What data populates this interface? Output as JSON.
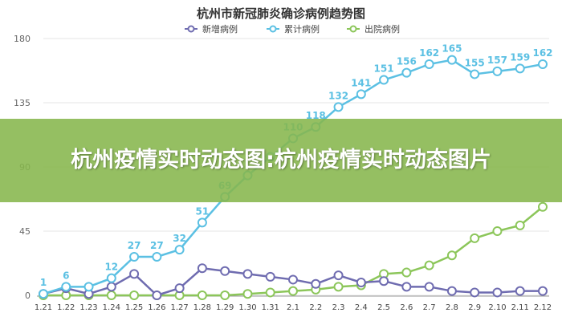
{
  "banner": {
    "text": "杭州疫情实时动态图:杭州疫情实时动态图片"
  },
  "chart_data": {
    "type": "line",
    "title": "杭州市新冠肺炎确诊病例趋势图",
    "xlabel": "",
    "ylabel": "",
    "ylim": [
      0,
      180
    ],
    "yticks": [
      0,
      45,
      90,
      135,
      180
    ],
    "grid": true,
    "legend": "top-center",
    "categories": [
      "1.21",
      "1.22",
      "1.23",
      "1.24",
      "1.25",
      "1.26",
      "1.27",
      "1.28",
      "1.29",
      "1.30",
      "1.31",
      "2.1",
      "2.2",
      "2.3",
      "2.4",
      "2.5",
      "2.6",
      "2.7",
      "2.8",
      "2.9",
      "2.10",
      "2.11",
      "2.12"
    ],
    "series": [
      {
        "name": "新增病例",
        "color": "#6f6cb0",
        "values": [
          1,
          5,
          1,
          6,
          15,
          0,
          5,
          19,
          17,
          15,
          13,
          11,
          8,
          14,
          9,
          10,
          6,
          6,
          3,
          2,
          2,
          3,
          3
        ]
      },
      {
        "name": "累计病例",
        "color": "#5bc0e3",
        "values": [
          1,
          6,
          6,
          12,
          27,
          27,
          32,
          51,
          69,
          84,
          97,
          110,
          118,
          132,
          141,
          151,
          156,
          162,
          165,
          155,
          157,
          159,
          162
        ],
        "labels": [
          "1",
          "6",
          "",
          "12",
          "27",
          "27",
          "32",
          "51",
          "69",
          "",
          "",
          "110",
          "118",
          "132",
          "141",
          "151",
          "156",
          "162",
          "165",
          "155",
          "157",
          "159",
          "162"
        ]
      },
      {
        "name": "出院病例",
        "color": "#8cc65a",
        "values": [
          0,
          0,
          0,
          0,
          0,
          0,
          0,
          0,
          0,
          1,
          2,
          3,
          4,
          6,
          7,
          15,
          16,
          21,
          28,
          40,
          45,
          49,
          62
        ]
      }
    ]
  }
}
